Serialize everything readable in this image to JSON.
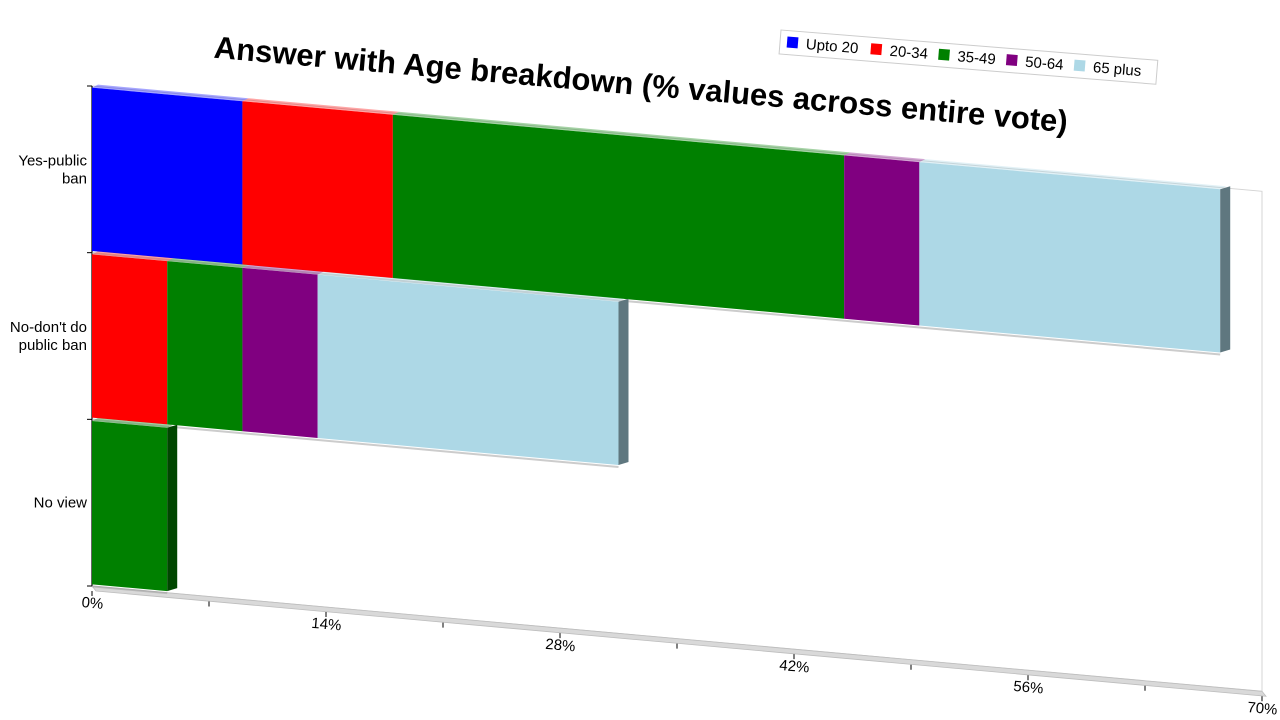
{
  "chart_data": {
    "type": "bar",
    "orientation": "horizontal",
    "stacked": true,
    "title": "Answer with Age breakdown (% values across entire vote)",
    "categories": [
      "Yes-public ban",
      "No-don't do public ban",
      "No view"
    ],
    "category_label_lines": [
      [
        "Yes-public",
        "ban"
      ],
      [
        "No-don't do",
        "public ban"
      ],
      [
        "No view"
      ]
    ],
    "x_ticks": [
      "0%",
      "14%",
      "28%",
      "42%",
      "56%",
      "70%"
    ],
    "xlim": [
      0,
      70
    ],
    "series": [
      {
        "name": "Upto 20",
        "color": "#0000ff",
        "values": [
          9,
          0,
          0
        ]
      },
      {
        "name": "20-34",
        "color": "#ff0000",
        "values": [
          9,
          4.5,
          0
        ]
      },
      {
        "name": "35-49",
        "color": "#008000",
        "values": [
          27,
          4.5,
          4.5
        ]
      },
      {
        "name": "50-64",
        "color": "#800080",
        "values": [
          4.5,
          4.5,
          0
        ]
      },
      {
        "name": "65 plus",
        "color": "#add8e6",
        "values": [
          18,
          18,
          0
        ]
      }
    ],
    "legend_position": "top-right",
    "grid": false
  }
}
